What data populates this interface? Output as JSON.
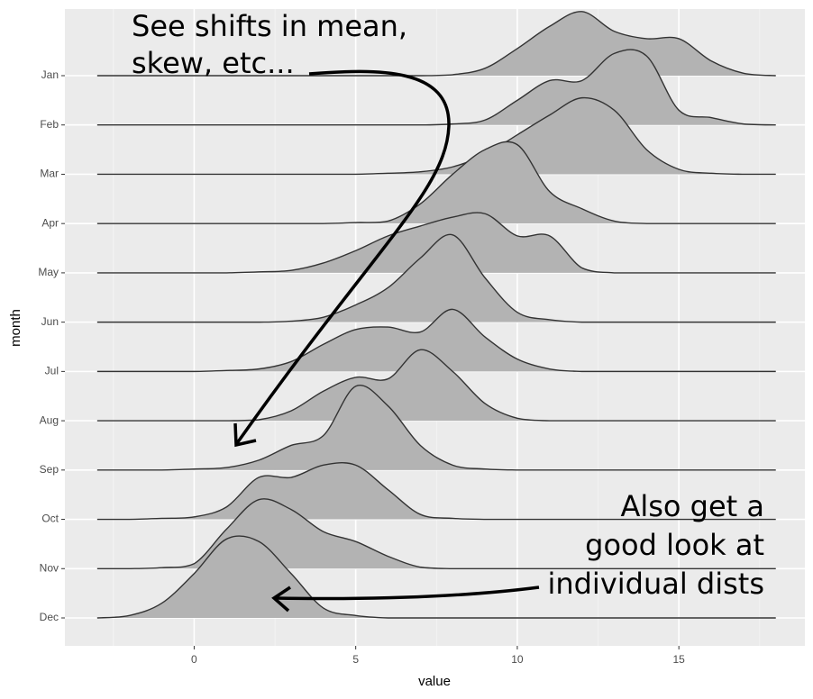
{
  "chart_data": {
    "type": "ridgeline",
    "annotations": [
      [
        "See shifts in mean,",
        "skew, etc..."
      ],
      [
        "Also get a",
        "good look at",
        "individual dists"
      ]
    ],
    "xlabel": "value",
    "ylabel": "month",
    "xlim": [
      -4,
      18.9
    ],
    "xticks": [
      0,
      5,
      10,
      15
    ],
    "xminorticks": [
      -2.5,
      2.5,
      7.5,
      12.5,
      17.5
    ],
    "grid": true,
    "color": "#b3b3b3",
    "line_color": "#333333",
    "x": [
      -3,
      -2,
      -1,
      0,
      1,
      2,
      3,
      4,
      5,
      6,
      7,
      8,
      9,
      10,
      11,
      12,
      13,
      14,
      15,
      16,
      17,
      18
    ],
    "series": [
      {
        "name": "Jan",
        "values": [
          0,
          0,
          0,
          0,
          0,
          0,
          0,
          0,
          0,
          0,
          0,
          0.02,
          0.15,
          0.55,
          1.0,
          1.3,
          0.9,
          0.75,
          0.75,
          0.3,
          0.05,
          0
        ]
      },
      {
        "name": "Feb",
        "values": [
          0,
          0,
          0,
          0,
          0,
          0,
          0,
          0,
          0,
          0,
          0,
          0.02,
          0.1,
          0.5,
          0.9,
          0.9,
          1.45,
          1.4,
          0.3,
          0.15,
          0.02,
          0
        ]
      },
      {
        "name": "Mar",
        "values": [
          0,
          0,
          0,
          0,
          0,
          0,
          0,
          0,
          0,
          0.02,
          0.05,
          0.15,
          0.4,
          0.8,
          1.2,
          1.55,
          1.3,
          0.5,
          0.1,
          0.02,
          0,
          0
        ]
      },
      {
        "name": "Apr",
        "values": [
          0,
          0,
          0,
          0,
          0,
          0,
          0,
          0,
          0.02,
          0.05,
          0.4,
          1.0,
          1.5,
          1.6,
          0.65,
          0.3,
          0.05,
          0,
          0,
          0,
          0,
          0
        ]
      },
      {
        "name": "May",
        "values": [
          0,
          0,
          0,
          0,
          0,
          0.02,
          0.05,
          0.2,
          0.45,
          0.75,
          0.95,
          1.13,
          1.2,
          0.75,
          0.75,
          0.1,
          0,
          0,
          0,
          0,
          0,
          0
        ]
      },
      {
        "name": "Jun",
        "values": [
          0,
          0,
          0,
          0,
          0,
          0,
          0.02,
          0.1,
          0.35,
          0.7,
          1.3,
          1.77,
          0.9,
          0.2,
          0.05,
          0,
          0,
          0,
          0,
          0,
          0,
          0
        ]
      },
      {
        "name": "Jul",
        "values": [
          0,
          0,
          0,
          0,
          0.02,
          0.05,
          0.2,
          0.55,
          0.85,
          0.9,
          0.8,
          1.26,
          0.7,
          0.25,
          0.05,
          0,
          0,
          0,
          0,
          0,
          0,
          0
        ]
      },
      {
        "name": "Aug",
        "values": [
          0,
          0,
          0,
          0,
          0,
          0.02,
          0.2,
          0.6,
          0.88,
          0.85,
          1.44,
          1.0,
          0.35,
          0.05,
          0,
          0,
          0,
          0,
          0,
          0,
          0,
          0
        ]
      },
      {
        "name": "Sep",
        "values": [
          0,
          0,
          0,
          0.02,
          0.05,
          0.2,
          0.5,
          0.7,
          1.7,
          1.3,
          0.5,
          0.1,
          0.02,
          0,
          0,
          0,
          0,
          0,
          0,
          0,
          0,
          0
        ]
      },
      {
        "name": "Oct",
        "values": [
          0,
          0,
          0.02,
          0.05,
          0.25,
          0.85,
          0.85,
          1.1,
          1.1,
          0.6,
          0.1,
          0.02,
          0,
          0,
          0,
          0,
          0,
          0,
          0,
          0,
          0,
          0
        ]
      },
      {
        "name": "Nov",
        "values": [
          0,
          0,
          0.02,
          0.1,
          0.8,
          1.4,
          1.2,
          0.75,
          0.55,
          0.25,
          0.03,
          0,
          0,
          0,
          0,
          0,
          0,
          0,
          0,
          0,
          0,
          0
        ]
      },
      {
        "name": "Dec",
        "values": [
          0,
          0.05,
          0.3,
          0.9,
          1.6,
          1.55,
          0.9,
          0.2,
          0.05,
          0,
          0,
          0,
          0,
          0,
          0,
          0,
          0,
          0,
          0,
          0,
          0,
          0
        ]
      }
    ]
  }
}
